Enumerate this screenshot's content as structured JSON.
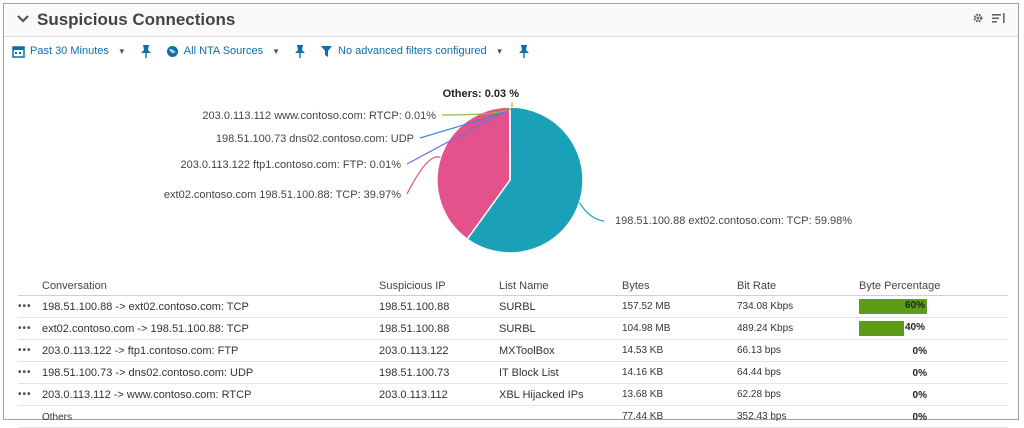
{
  "header": {
    "title": "Suspicious Connections"
  },
  "toolbar": {
    "time": "Past 30 Minutes",
    "sources": "All NTA Sources",
    "filters": "No advanced filters configured"
  },
  "colors": {
    "teal": "#1aa1b8",
    "pink": "#e3528b",
    "bar": "#5c9c18",
    "link": "#0f6ea8"
  },
  "chart_data": {
    "type": "pie",
    "slices": [
      {
        "label": "198.51.100.88  ext02.contoso.com: TCP: 59.98%",
        "value": 59.98,
        "color": "#1aa1b8"
      },
      {
        "label": "ext02.contoso.com 198.51.100.88: TCP: 39.97%",
        "value": 39.97,
        "color": "#e3528b"
      },
      {
        "label": "203.0.113.122  ftp1.contoso.com: FTP: 0.01%",
        "value": 0.01,
        "color": "#7a6bd6"
      },
      {
        "label": "198.51.100.73  dns02.contoso.com: UDP",
        "value": 0.01,
        "color": "#2e8bd8"
      },
      {
        "label": "203.0.113.112  www.contoso.com: RTCP: 0.01%",
        "value": 0.01,
        "color": "#8fbf3a"
      },
      {
        "label": "Others: 0.03 %",
        "value": 0.03,
        "color": "#f0a020"
      }
    ]
  },
  "table": {
    "headers": [
      "Conversation",
      "Suspicious IP",
      "List Name",
      "Bytes",
      "Bit Rate",
      "Byte Percentage"
    ],
    "rows": [
      {
        "conv": "198.51.100.88 -> ext02.contoso.com: TCP",
        "ip": "198.51.100.88",
        "list": "SURBL",
        "bytes": "157.52 MB",
        "rate": "734.08 Kbps",
        "pct": "60%",
        "pct_value": 60
      },
      {
        "conv": "ext02.contoso.com -> 198.51.100.88: TCP",
        "ip": "198.51.100.88",
        "list": "SURBL",
        "bytes": "104.98 MB",
        "rate": "489.24 Kbps",
        "pct": "40%",
        "pct_value": 40
      },
      {
        "conv": "203.0.113.122 -> ftp1.contoso.com: FTP",
        "ip": "203.0.113.122",
        "list": "MXToolBox",
        "bytes": "14.53 KB",
        "rate": "66.13 bps",
        "pct": "0%",
        "pct_value": 0
      },
      {
        "conv": "198.51.100.73 -> dns02.contoso.com: UDP",
        "ip": "198.51.100.73",
        "list": "IT Block List",
        "bytes": "14.16 KB",
        "rate": "64.44 bps",
        "pct": "0%",
        "pct_value": 0
      },
      {
        "conv": "203.0.113.112 -> www.contoso.com: RTCP",
        "ip": "203.0.113.112",
        "list": "XBL Hijacked IPs",
        "bytes": "13.68 KB",
        "rate": "62.28 bps",
        "pct": "0%",
        "pct_value": 0
      },
      {
        "conv": "Others",
        "ip": "",
        "list": "",
        "bytes": "77.44 KB",
        "rate": "352.43 bps",
        "pct": "0%",
        "pct_value": 0
      }
    ]
  }
}
